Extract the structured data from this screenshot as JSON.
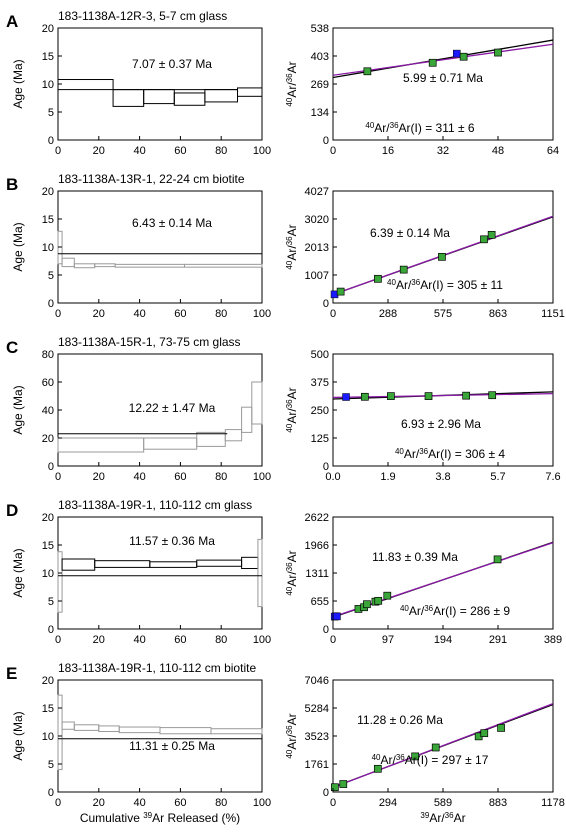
{
  "figure": {
    "age_axis_label": "Age (Ma)",
    "age_x_title_pre": "Cumulative ",
    "age_x_title_sup": "39",
    "age_x_title_post": "Ar Released (%)",
    "iso_x_title_sup": "39",
    "iso_x_title_post": "Ar/",
    "iso_x_title_sup2": "36",
    "iso_x_title_post2": "Ar",
    "iso_y_sup1": "40",
    "iso_y_mid": "Ar/",
    "iso_y_sup2": "36",
    "iso_y_post": "Ar",
    "intercept_prefix_sup1": "40",
    "intercept_prefix_mid": "Ar/",
    "intercept_prefix_sup2": "36",
    "intercept_prefix_post": "Ar(I) = "
  },
  "colors": {
    "point_fill": "#3aa63a",
    "anomalous_point": "#1a1aff",
    "fit_line_1": "#000000",
    "fit_line_2": "#8a1aa6",
    "plateau_box": "#000000",
    "step_gray": "#9a9a9a"
  },
  "chart_data": [
    {
      "panel": "A",
      "type": "step",
      "title": "183-1138A-12R-3, 5-7 cm glass",
      "ylabel": "Age (Ma)",
      "xlim": [
        0,
        100
      ],
      "ylim": [
        0,
        20
      ],
      "xticks": [
        "0",
        "20",
        "40",
        "60",
        "80",
        "100"
      ],
      "yticks": [
        "0",
        "5",
        "10",
        "15",
        "20"
      ],
      "steps": [
        {
          "x": [
            0,
            27
          ],
          "age": [
            9.0,
            10.8
          ],
          "in_plateau": true
        },
        {
          "x": [
            27,
            42
          ],
          "age": [
            6.0,
            9.0
          ],
          "in_plateau": true
        },
        {
          "x": [
            42,
            57
          ],
          "age": [
            6.5,
            9.0
          ],
          "in_plateau": true
        },
        {
          "x": [
            57,
            72
          ],
          "age": [
            6.2,
            8.4
          ],
          "in_plateau": true
        },
        {
          "x": [
            72,
            88
          ],
          "age": [
            6.8,
            9.0
          ],
          "in_plateau": true
        },
        {
          "x": [
            88,
            100
          ],
          "age": [
            7.8,
            9.3
          ],
          "in_plateau": true
        }
      ],
      "plateau": {
        "x": [
          27,
          88
        ],
        "age": 9.0
      },
      "age_label": "7.07 ± 0.37 Ma"
    },
    {
      "panel": "A",
      "type": "scatter",
      "xlim": [
        0,
        64
      ],
      "ylim": [
        0,
        538
      ],
      "xticks": [
        "0",
        "16",
        "32",
        "48",
        "64"
      ],
      "yticks": [
        "0",
        "134",
        "269",
        "403",
        "538"
      ],
      "points": [
        [
          10,
          330
        ],
        [
          29,
          371
        ],
        [
          38,
          400
        ],
        [
          48,
          420
        ]
      ],
      "anomalous_points": [
        [
          36,
          415
        ]
      ],
      "fit_lines": [
        [
          [
            0,
            300
          ],
          [
            64,
            480
          ]
        ],
        [
          [
            0,
            311
          ],
          [
            64,
            460
          ]
        ]
      ],
      "age_label": "5.99 ± 0.71 Ma",
      "intercept_label": "311 ± 6"
    },
    {
      "panel": "B",
      "type": "step",
      "title": "183-1138A-13R-1, 22-24 cm biotite",
      "ylabel": "Age (Ma)",
      "xlim": [
        0,
        100
      ],
      "ylim": [
        0,
        20
      ],
      "xticks": [
        "0",
        "20",
        "40",
        "60",
        "80",
        "100"
      ],
      "yticks": [
        "0",
        "5",
        "10",
        "15",
        "20"
      ],
      "steps": [
        {
          "x": [
            0,
            2
          ],
          "age": [
            7.0,
            12.8
          ],
          "in_plateau": false
        },
        {
          "x": [
            2,
            8
          ],
          "age": [
            6.5,
            8.0
          ],
          "in_plateau": false
        },
        {
          "x": [
            8,
            18
          ],
          "age": [
            6.3,
            7.0
          ],
          "in_plateau": false
        },
        {
          "x": [
            18,
            28
          ],
          "age": [
            6.5,
            7.0
          ],
          "in_plateau": false
        },
        {
          "x": [
            28,
            62
          ],
          "age": [
            6.4,
            6.9
          ],
          "in_plateau": false
        },
        {
          "x": [
            62,
            100
          ],
          "age": [
            6.4,
            6.9
          ],
          "in_plateau": false
        }
      ],
      "plateau": {
        "x": [
          0,
          100
        ],
        "age": 8.8
      },
      "age_label": "6.43 ± 0.14 Ma"
    },
    {
      "panel": "B",
      "type": "scatter",
      "xlim": [
        0,
        1151
      ],
      "ylim": [
        0,
        4027
      ],
      "xticks": [
        "0",
        "288",
        "575",
        "863",
        "1151"
      ],
      "yticks": [
        "0",
        "1007",
        "2013",
        "3020",
        "4027"
      ],
      "points": [
        [
          40,
          410
        ],
        [
          235,
          870
        ],
        [
          370,
          1200
        ],
        [
          570,
          1660
        ],
        [
          790,
          2290
        ],
        [
          830,
          2450
        ]
      ],
      "anomalous_points": [
        [
          8,
          310
        ]
      ],
      "fit_lines": [
        [
          [
            0,
            305
          ],
          [
            1151,
            3100
          ]
        ],
        [
          [
            0,
            305
          ],
          [
            1151,
            3120
          ]
        ]
      ],
      "age_label": "6.39 ± 0.14 Ma",
      "intercept_label": "305 ± 11"
    },
    {
      "panel": "C",
      "type": "step",
      "title": "183-1138A-15R-1, 73-75 cm glass",
      "ylabel": "Age (Ma)",
      "xlim": [
        0,
        100
      ],
      "ylim": [
        0,
        80
      ],
      "xticks": [
        "0",
        "20",
        "40",
        "60",
        "80",
        "100"
      ],
      "yticks": [
        "0",
        "20",
        "40",
        "60",
        "80"
      ],
      "steps": [
        {
          "x": [
            0,
            42
          ],
          "age": [
            10,
            20
          ],
          "in_plateau": false
        },
        {
          "x": [
            42,
            68
          ],
          "age": [
            12,
            20
          ],
          "in_plateau": false
        },
        {
          "x": [
            68,
            82
          ],
          "age": [
            14,
            24
          ],
          "in_plateau": false
        },
        {
          "x": [
            82,
            90
          ],
          "age": [
            18,
            26
          ],
          "in_plateau": false
        },
        {
          "x": [
            90,
            95
          ],
          "age": [
            24,
            42
          ],
          "in_plateau": false
        },
        {
          "x": [
            95,
            100
          ],
          "age": [
            30,
            60
          ],
          "in_plateau": false
        }
      ],
      "plateau": {
        "x": [
          0,
          83
        ],
        "age": 23
      },
      "age_label": "12.22 ± 1.47 Ma"
    },
    {
      "panel": "C",
      "type": "scatter",
      "xlim": [
        0,
        7.6
      ],
      "ylim": [
        0,
        500
      ],
      "xticks": [
        "0.0",
        "1.9",
        "3.8",
        "5.7",
        "7.6"
      ],
      "yticks": [
        "0",
        "125",
        "250",
        "375",
        "500"
      ],
      "points": [
        [
          1.1,
          309
        ],
        [
          2.0,
          312
        ],
        [
          3.3,
          312
        ],
        [
          4.6,
          314
        ],
        [
          5.5,
          316
        ]
      ],
      "anomalous_points": [
        [
          0.45,
          308
        ]
      ],
      "fit_lines": [
        [
          [
            0,
            299
          ],
          [
            7.6,
            331
          ]
        ],
        [
          [
            0,
            306
          ],
          [
            7.6,
            323
          ]
        ]
      ],
      "age_label": "6.93 ± 2.96 Ma",
      "intercept_label": "306 ± 4"
    },
    {
      "panel": "D",
      "type": "step",
      "title": "183-1138A-19R-1, 110-112 cm glass",
      "ylabel": "Age (Ma)",
      "xlim": [
        0,
        100
      ],
      "ylim": [
        0,
        20
      ],
      "xticks": [
        "0",
        "20",
        "40",
        "60",
        "80",
        "100"
      ],
      "yticks": [
        "0",
        "5",
        "10",
        "15",
        "20"
      ],
      "steps": [
        {
          "x": [
            0,
            2
          ],
          "age": [
            3,
            13.8
          ],
          "in_plateau": false
        },
        {
          "x": [
            2,
            18
          ],
          "age": [
            10.5,
            12.5
          ],
          "in_plateau": true
        },
        {
          "x": [
            18,
            45
          ],
          "age": [
            11.0,
            12.2
          ],
          "in_plateau": true
        },
        {
          "x": [
            45,
            68
          ],
          "age": [
            11.0,
            12.0
          ],
          "in_plateau": true
        },
        {
          "x": [
            68,
            90
          ],
          "age": [
            11.2,
            12.3
          ],
          "in_plateau": true
        },
        {
          "x": [
            90,
            98
          ],
          "age": [
            10.8,
            12.8
          ],
          "in_plateau": true
        },
        {
          "x": [
            98,
            100
          ],
          "age": [
            4,
            16
          ],
          "in_plateau": false
        }
      ],
      "plateau": {
        "x": [
          0,
          100
        ],
        "age": 9.5
      },
      "age_label": "11.57 ± 0.36 Ma"
    },
    {
      "panel": "D",
      "type": "scatter",
      "xlim": [
        0,
        389
      ],
      "ylim": [
        0,
        2622
      ],
      "xticks": [
        "0",
        "97",
        "194",
        "291",
        "389"
      ],
      "yticks": [
        "0",
        "655",
        "1311",
        "1966",
        "2622"
      ],
      "points": [
        [
          45,
          470
        ],
        [
          55,
          510
        ],
        [
          60,
          580
        ],
        [
          75,
          640
        ],
        [
          80,
          660
        ],
        [
          96,
          780
        ],
        [
          291,
          1630
        ]
      ],
      "anomalous_points": [
        [
          3,
          290
        ],
        [
          5,
          300
        ],
        [
          7,
          295
        ]
      ],
      "fit_lines": [
        [
          [
            0,
            275
          ],
          [
            389,
            2030
          ]
        ],
        [
          [
            0,
            286
          ],
          [
            389,
            2020
          ]
        ]
      ],
      "age_label": "11.83 ± 0.39 Ma",
      "intercept_label": "286 ± 9"
    },
    {
      "panel": "E",
      "type": "step",
      "title": "183-1138A-19R-1, 110-112 cm biotite",
      "ylabel": "Age (Ma)",
      "xlim": [
        0,
        100
      ],
      "ylim": [
        0,
        20
      ],
      "xticks": [
        "0",
        "20",
        "40",
        "60",
        "80",
        "100"
      ],
      "yticks": [
        "0",
        "5",
        "10",
        "15",
        "20"
      ],
      "steps": [
        {
          "x": [
            0,
            2
          ],
          "age": [
            4,
            17.3
          ],
          "in_plateau": false
        },
        {
          "x": [
            2,
            8
          ],
          "age": [
            11.2,
            12.5
          ],
          "in_plateau": false
        },
        {
          "x": [
            8,
            20
          ],
          "age": [
            11.0,
            12.0
          ],
          "in_plateau": false
        },
        {
          "x": [
            20,
            30
          ],
          "age": [
            10.8,
            11.8
          ],
          "in_plateau": false
        },
        {
          "x": [
            30,
            50
          ],
          "age": [
            10.6,
            11.6
          ],
          "in_plateau": false
        },
        {
          "x": [
            50,
            75
          ],
          "age": [
            10.4,
            11.5
          ],
          "in_plateau": false
        },
        {
          "x": [
            75,
            100
          ],
          "age": [
            10.4,
            11.3
          ],
          "in_plateau": false
        }
      ],
      "plateau": {
        "x": [
          0,
          100
        ],
        "age": 9.5
      },
      "age_label": "11.31 ± 0.25 Ma"
    },
    {
      "panel": "E",
      "type": "scatter",
      "xlim": [
        0,
        1178
      ],
      "ylim": [
        0,
        7046
      ],
      "xticks": [
        "0",
        "294",
        "589",
        "883",
        "1178"
      ],
      "yticks": [
        "0",
        "1761",
        "3523",
        "5284",
        "7046"
      ],
      "points": [
        [
          10,
          300
        ],
        [
          55,
          500
        ],
        [
          240,
          1460
        ],
        [
          440,
          2240
        ],
        [
          550,
          2800
        ],
        [
          780,
          3500
        ],
        [
          810,
          3700
        ],
        [
          900,
          4030
        ]
      ],
      "anomalous_points": [],
      "fit_lines": [
        [
          [
            0,
            297
          ],
          [
            1178,
            5500
          ]
        ],
        [
          [
            0,
            280
          ],
          [
            1178,
            5560
          ]
        ]
      ],
      "age_label": "11.28 ± 0.26 Ma",
      "intercept_label": "297 ± 17"
    }
  ]
}
